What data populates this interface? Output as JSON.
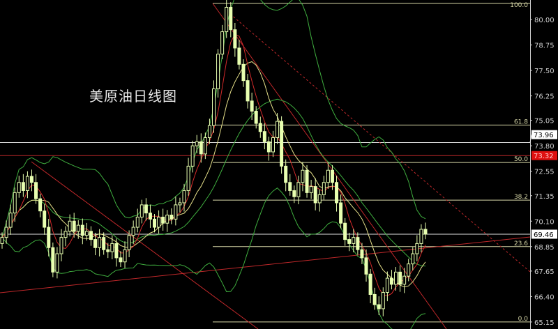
{
  "chart_data": {
    "type": "candlestick",
    "title": "美原油日线图",
    "ylim": [
      65.0,
      81.0
    ],
    "y_ticks": [
      "80.00",
      "78.75",
      "77.50",
      "76.25",
      "75.05",
      "73.80",
      "72.55",
      "71.35",
      "70.10",
      "68.85",
      "67.65",
      "66.40",
      "65.15"
    ],
    "close": [
      69.3,
      69.8,
      70.5,
      71.5,
      72.0,
      71.6,
      72.3,
      72.0,
      71.2,
      70.6,
      69.8,
      68.8,
      67.6,
      68.5,
      69.3,
      69.6,
      70.1,
      69.6,
      69.9,
      69.4,
      69.6,
      69.2,
      68.8,
      69.3,
      68.7,
      68.6,
      69.0,
      68.3,
      68.1,
      68.7,
      69.4,
      69.8,
      70.3,
      70.9,
      70.5,
      70.2,
      69.8,
      70.3,
      70.0,
      70.4,
      70.2,
      70.9,
      71.0,
      71.6,
      72.8,
      73.8,
      74.0,
      73.4,
      74.2,
      74.8,
      76.6,
      78.3,
      79.4,
      80.6,
      79.5,
      78.6,
      77.8,
      77.0,
      76.0,
      75.5,
      74.9,
      74.5,
      74.0,
      73.5,
      74.2,
      75.0,
      72.8,
      72.0,
      71.6,
      71.3,
      72.0,
      72.6,
      71.5,
      71.8,
      71.0,
      71.4,
      72.0,
      72.6,
      72.0,
      71.0,
      70.0,
      69.2,
      69.0,
      69.3,
      68.7,
      68.3,
      67.5,
      66.5,
      66.0,
      65.8,
      66.6,
      67.3,
      67.0,
      67.6,
      67.0,
      67.4,
      68.0,
      68.5,
      69.0,
      69.7,
      69.46
    ],
    "fibonacci": {
      "high": 80.8,
      "low": 65.15,
      "levels": [
        {
          "label": "100.0",
          "value": 80.8
        },
        {
          "label": "61.8",
          "value": 74.82
        },
        {
          "label": "50.0",
          "value": 72.98
        },
        {
          "label": "38.2",
          "value": 71.13
        },
        {
          "label": "23.6",
          "value": 68.85
        },
        {
          "label": "0.0",
          "value": 65.15
        }
      ]
    },
    "price_labels": [
      {
        "text": "73.96",
        "value": 73.96,
        "style": "white"
      },
      {
        "text": "73.32",
        "value": 73.32,
        "style": "red"
      },
      {
        "text": "69.46",
        "value": 69.46,
        "style": "white"
      }
    ],
    "indicators": [
      "moving-average-5",
      "moving-average-10",
      "bollinger-bands-20"
    ],
    "colors": {
      "background": "#000000",
      "up": "#e8ffb0",
      "down": "#e8ffb0",
      "ma_fast": "#d42a2a",
      "ma_slow": "#e6e08a",
      "bollinger": "#3fae3f",
      "fib": "#d8d8a8",
      "trend": "#c0282a",
      "axis": "#cfcfcf"
    }
  }
}
